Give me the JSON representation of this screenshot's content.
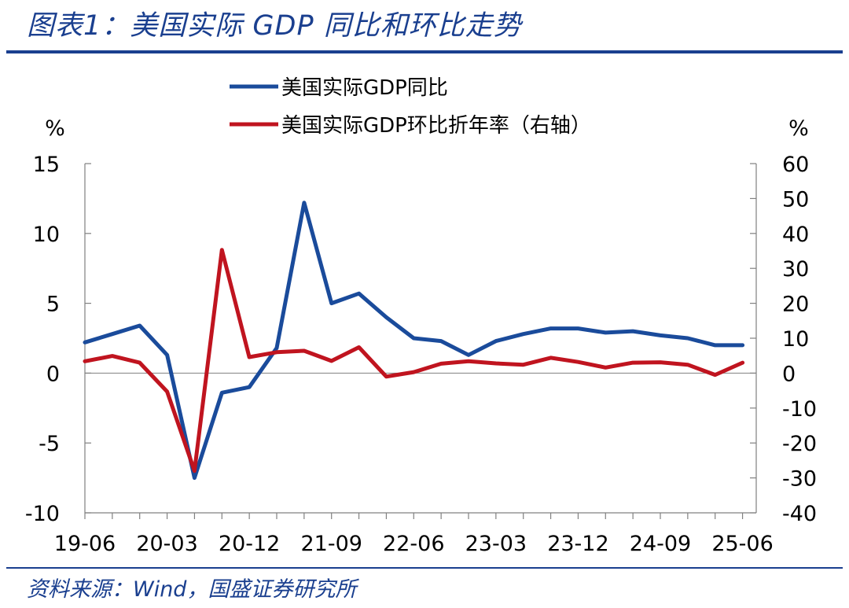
{
  "figure": {
    "title": "图表1：美国实际 GDP 同比和环比走势",
    "source": "资料来源：Wind，国盛证券研究所"
  },
  "chart_data": {
    "type": "line",
    "title": "",
    "xlabel": "",
    "y_left": {
      "label": "%",
      "ylim": [
        -10,
        15
      ],
      "ticks": [
        -10,
        -5,
        0,
        5,
        10,
        15
      ]
    },
    "y_right": {
      "label": "%",
      "ylim": [
        -40,
        60
      ],
      "ticks": [
        -40,
        -30,
        -20,
        -10,
        0,
        10,
        20,
        30,
        40,
        50,
        60
      ]
    },
    "x_tick_labels": [
      "19-06",
      "20-03",
      "20-12",
      "21-09",
      "22-06",
      "23-03",
      "23-12",
      "24-09",
      "25-06"
    ],
    "x": [
      "19-06",
      "19-09",
      "19-12",
      "20-03",
      "20-06",
      "20-09",
      "20-12",
      "21-03",
      "21-06",
      "21-09",
      "21-12",
      "22-03",
      "22-06",
      "22-09",
      "22-12",
      "23-03",
      "23-06",
      "23-09",
      "23-12",
      "24-03",
      "24-06",
      "24-09",
      "24-12",
      "25-03",
      "25-06"
    ],
    "series": [
      {
        "name": "美国实际GDP同比",
        "axis": "left",
        "color": "#1a4b9b",
        "values": [
          2.2,
          2.8,
          3.4,
          1.3,
          -7.5,
          -1.4,
          -1.0,
          1.8,
          12.2,
          5.0,
          5.7,
          4.0,
          2.5,
          2.3,
          1.3,
          2.3,
          2.8,
          3.2,
          3.2,
          2.9,
          3.0,
          2.7,
          2.5,
          2.0,
          2.0
        ]
      },
      {
        "name": "美国实际GDP环比折年率（右轴）",
        "axis": "right",
        "color": "#c0141f",
        "values": [
          3.4,
          4.9,
          3.0,
          -5.3,
          -28.0,
          35.3,
          4.6,
          6.0,
          6.4,
          3.5,
          7.4,
          -1.0,
          0.3,
          2.7,
          3.4,
          2.8,
          2.4,
          4.4,
          3.2,
          1.6,
          3.0,
          3.1,
          2.4,
          -0.5,
          3.0
        ]
      }
    ]
  }
}
